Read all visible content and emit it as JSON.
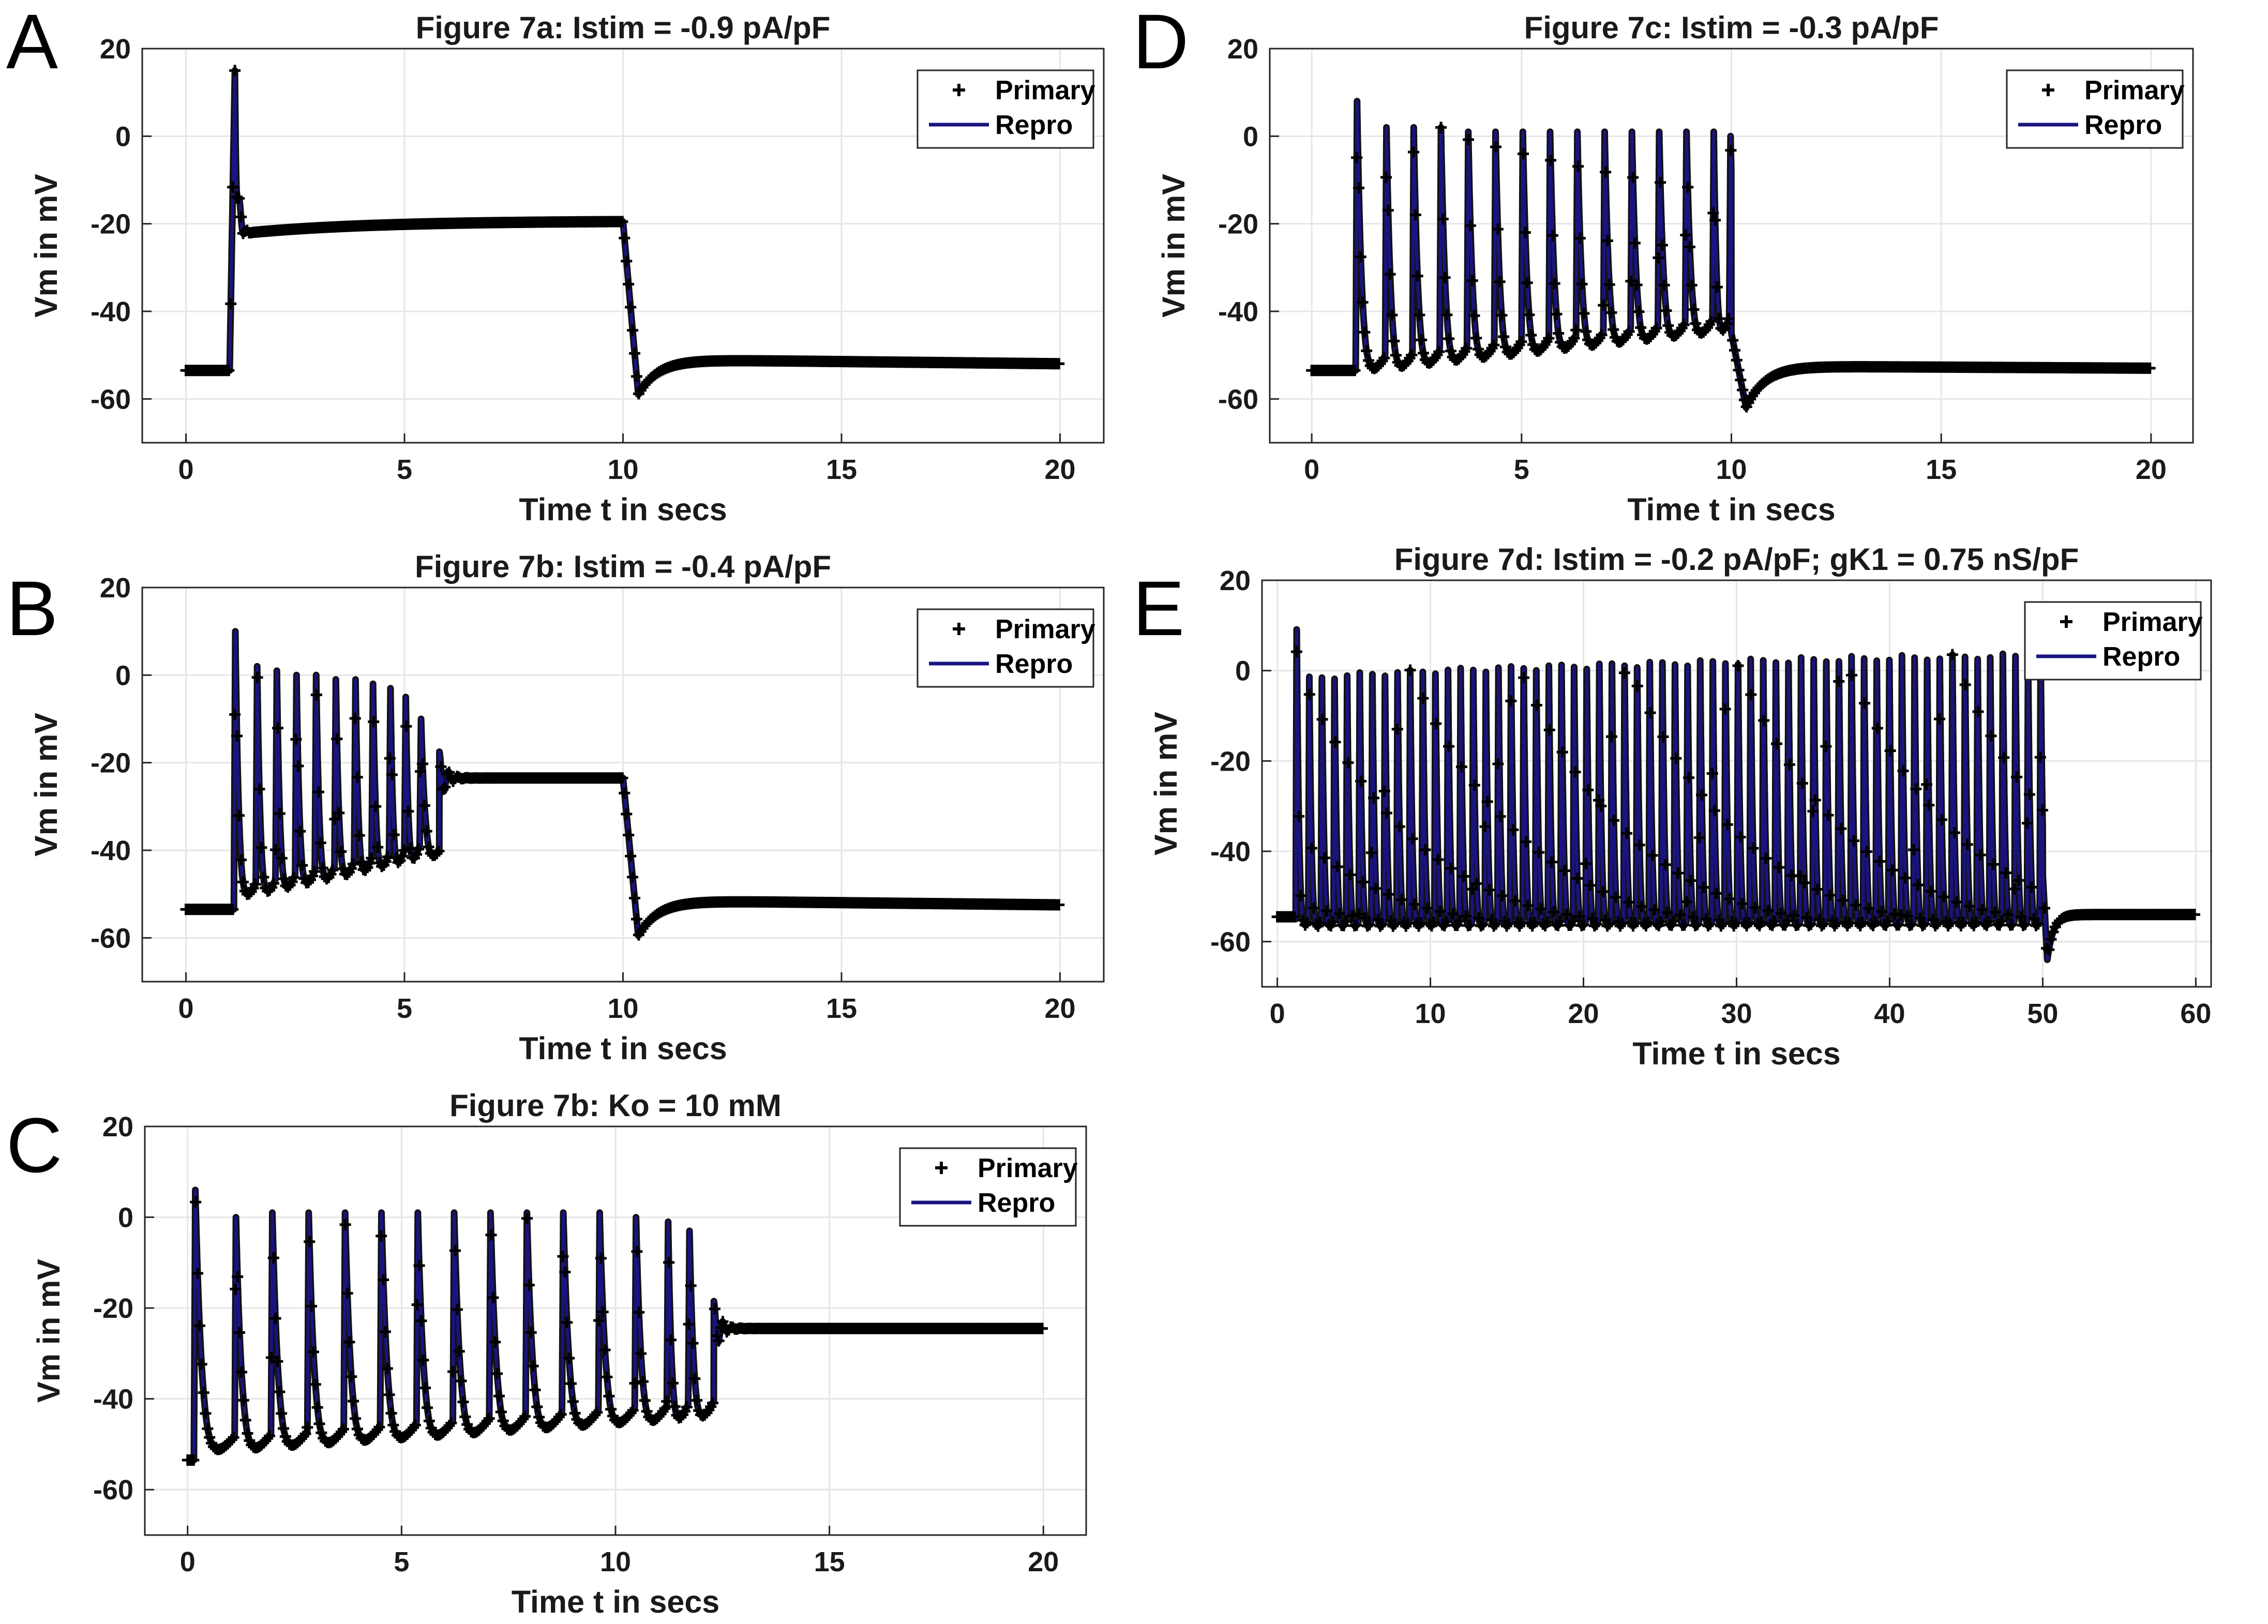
{
  "colors": {
    "primary_marker": "#000000",
    "repro_line": "#1a1480",
    "grid": "#e6e6e6",
    "axes": "#262626"
  },
  "chart_data": [
    {
      "panel": "A",
      "type": "line",
      "title": "Figure 7a: Istim = -0.9 pA/pF",
      "xlabel": "Time t in secs",
      "ylabel": "Vm in mV",
      "xlim": [
        -1,
        21
      ],
      "ylim": [
        -70,
        20
      ],
      "xticks": [
        0,
        5,
        10,
        15,
        20
      ],
      "yticks": [
        -60,
        -40,
        -20,
        0,
        20
      ],
      "grid": true,
      "legend_position": "top-right",
      "legend": [
        "Primary",
        "Repro"
      ],
      "series": [
        {
          "name": "Primary",
          "marker": "+"
        },
        {
          "name": "Repro",
          "style": "solid line"
        }
      ],
      "pattern": {
        "kind": "depolarized",
        "t_stim_on": 1.0,
        "t_stim_off": 10.0,
        "t_end": 20,
        "rest": -53.5,
        "peak": 15,
        "plateau_start": -22,
        "plateau_end": -19.5,
        "undershoot": -59,
        "post_rest": -51,
        "end_rest": -52
      }
    },
    {
      "panel": "B",
      "type": "line",
      "title": "Figure 7b: Istim = -0.4 pA/pF",
      "xlabel": "Time t in secs",
      "ylabel": "Vm in mV",
      "xlim": [
        -1,
        21
      ],
      "ylim": [
        -70,
        20
      ],
      "xticks": [
        0,
        5,
        10,
        15,
        20
      ],
      "yticks": [
        -60,
        -40,
        -20,
        0,
        20
      ],
      "grid": true,
      "legend_position": "top-right",
      "legend": [
        "Primary",
        "Repro"
      ],
      "series": [
        {
          "name": "Primary",
          "marker": "+"
        },
        {
          "name": "Repro",
          "style": "solid line"
        }
      ],
      "pattern": {
        "kind": "spikes-then-plateau",
        "t_stim_on": 1.0,
        "t_stim_off": 10.0,
        "t_end": 20,
        "rest": -53.5,
        "spike_times": [
          1.1,
          1.6,
          2.05,
          2.5,
          2.95,
          3.4,
          3.85,
          4.25,
          4.65,
          5.0,
          5.35
        ],
        "spike_peaks": [
          10,
          2,
          1,
          0,
          0,
          -1,
          -1,
          -2,
          -3,
          -5,
          -10
        ],
        "trough_start": -55,
        "trough_end": -45,
        "plateau": -23.5,
        "plateau_start_t": 5.8,
        "undershoot": -59.5,
        "post_rest": -51.5,
        "end_rest": -52.5
      }
    },
    {
      "panel": "C",
      "type": "line",
      "title": "Figure 7b: Ko = 10 mM",
      "xlabel": "Time t in secs",
      "ylabel": "Vm in mV",
      "xlim": [
        -1,
        21
      ],
      "ylim": [
        -70,
        20
      ],
      "xticks": [
        0,
        5,
        10,
        15,
        20
      ],
      "yticks": [
        -60,
        -40,
        -20,
        0,
        20
      ],
      "grid": true,
      "legend_position": "top-right",
      "legend": [
        "Primary",
        "Repro"
      ],
      "series": [
        {
          "name": "Primary",
          "marker": "+"
        },
        {
          "name": "Repro",
          "style": "solid line"
        }
      ],
      "pattern": {
        "kind": "spikes-then-plateau",
        "t_stim_on": 0.1,
        "t_stim_off": 99,
        "t_end": 20,
        "rest": -53.5,
        "spike_times": [
          0.15,
          1.1,
          1.95,
          2.8,
          3.65,
          4.5,
          5.35,
          6.2,
          7.05,
          7.9,
          8.75,
          9.6,
          10.45,
          11.2,
          11.7
        ],
        "spike_peaks": [
          6,
          0,
          1,
          1,
          1,
          1,
          1,
          1,
          1,
          1,
          1,
          1,
          0,
          -1,
          -3
        ],
        "trough_start": -56,
        "trough_end": -48,
        "plateau": -24.5,
        "plateau_start_t": 12.3,
        "undershoot": -24.5,
        "post_rest": -24.5,
        "end_rest": -24.5
      }
    },
    {
      "panel": "D",
      "type": "line",
      "title": "Figure 7c: Istim = -0.3 pA/pF",
      "xlabel": "Time t in secs",
      "ylabel": "Vm in mV",
      "xlim": [
        -1,
        21
      ],
      "ylim": [
        -70,
        20
      ],
      "xticks": [
        0,
        5,
        10,
        15,
        20
      ],
      "yticks": [
        -60,
        -40,
        -20,
        0,
        20
      ],
      "grid": true,
      "legend_position": "top-right",
      "legend": [
        "Primary",
        "Repro"
      ],
      "series": [
        {
          "name": "Primary",
          "marker": "+"
        },
        {
          "name": "Repro",
          "style": "solid line"
        }
      ],
      "pattern": {
        "kind": "spikes",
        "t_stim_on": 1.0,
        "t_stim_off": 10.0,
        "t_end": 20,
        "rest": -53.5,
        "spike_times": [
          1.05,
          1.75,
          2.4,
          3.05,
          3.7,
          4.35,
          5.0,
          5.65,
          6.3,
          6.95,
          7.6,
          8.25,
          8.9,
          9.55,
          9.95
        ],
        "spike_peaks": [
          8,
          2,
          2,
          2,
          1,
          1,
          1,
          1,
          1,
          1,
          1,
          1,
          1,
          1,
          0
        ],
        "trough_start": -58,
        "trough_end": -48,
        "undershoot": -62,
        "post_rest": -52.5,
        "end_rest": -53
      }
    },
    {
      "panel": "E",
      "type": "line",
      "title": "Figure 7d: Istim = -0.2 pA/pF; gK1 = 0.75 nS/pF",
      "xlabel": "Time t in secs",
      "ylabel": "Vm in mV",
      "xlim": [
        -1,
        61
      ],
      "ylim": [
        -70,
        20
      ],
      "xticks": [
        0,
        10,
        20,
        30,
        40,
        50,
        60
      ],
      "yticks": [
        -60,
        -40,
        -20,
        0,
        20
      ],
      "grid": true,
      "legend_position": "top-right",
      "legend": [
        "Primary",
        "Repro"
      ],
      "series": [
        {
          "name": "Primary",
          "marker": "+"
        },
        {
          "name": "Repro",
          "style": "solid line"
        }
      ],
      "pattern": {
        "kind": "dense-spikes",
        "t_stim_on": 1.0,
        "t_stim_off": 50.0,
        "t_end": 60,
        "rest": -54.5,
        "spike_start": 1.2,
        "spike_end": 49.8,
        "spike_count": 60,
        "first_peak": 10,
        "peak_start": -2,
        "peak_end": 4,
        "trough": -61,
        "undershoot": -64,
        "post_rest": -54,
        "end_rest": -54
      }
    }
  ],
  "panels": {
    "A": {
      "letter": "A"
    },
    "B": {
      "letter": "B"
    },
    "C": {
      "letter": "C"
    },
    "D": {
      "letter": "D"
    },
    "E": {
      "letter": "E"
    }
  }
}
